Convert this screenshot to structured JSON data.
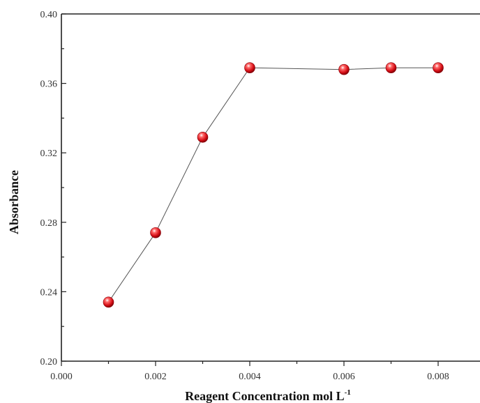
{
  "chart_data": {
    "type": "line",
    "title": "",
    "xlabel": "Reagent Concentration mol L",
    "xlabel_superscript": "-1",
    "ylabel": "Absorbance",
    "xlim": [
      0.0,
      0.0088
    ],
    "ylim": [
      0.2,
      0.4
    ],
    "x_ticks": [
      "0.000",
      "0.002",
      "0.004",
      "0.006",
      "0.008"
    ],
    "x_tick_values": [
      0.0,
      0.002,
      0.004,
      0.006,
      0.008
    ],
    "y_ticks": [
      "0.20",
      "0.24",
      "0.28",
      "0.32",
      "0.36",
      "0.40"
    ],
    "y_tick_values": [
      0.2,
      0.24,
      0.28,
      0.32,
      0.36,
      0.4
    ],
    "grid": false,
    "legend": "none",
    "marker_color": "#e0141e",
    "line_color": "#555555",
    "series": [
      {
        "x": [
          0.001,
          0.002,
          0.003,
          0.004,
          0.006,
          0.007,
          0.008
        ],
        "y": [
          0.234,
          0.274,
          0.329,
          0.369,
          0.368,
          0.369,
          0.369
        ]
      }
    ]
  }
}
